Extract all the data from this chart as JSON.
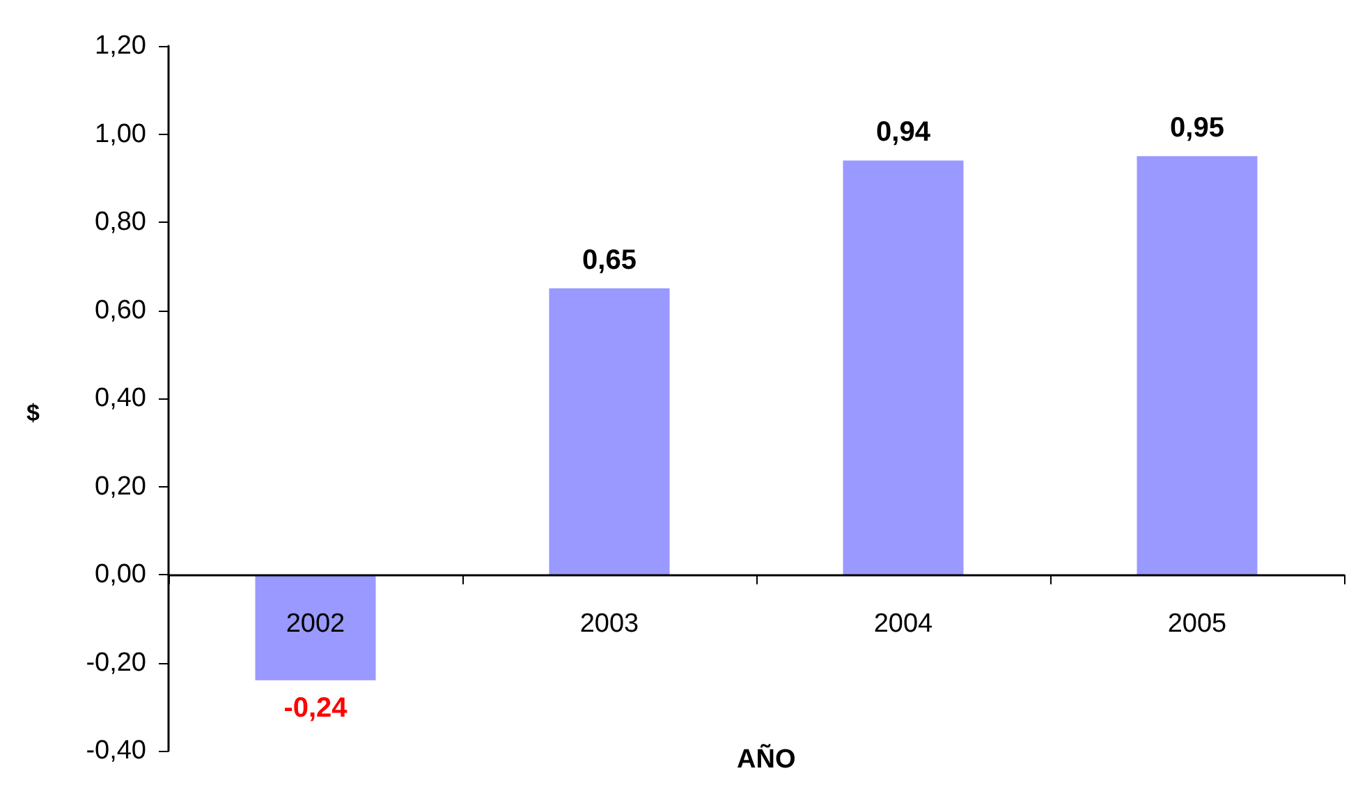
{
  "chart_data": {
    "type": "bar",
    "xlabel": "AÑO",
    "ylabel": "$",
    "categories": [
      "2002",
      "2003",
      "2004",
      "2005"
    ],
    "values": [
      -0.24,
      0.65,
      0.94,
      0.95
    ],
    "value_labels": [
      "-0,24",
      "0,65",
      "0,94",
      "0,95"
    ],
    "color": "#9999ff",
    "ylim": [
      -0.4,
      1.2
    ],
    "yticks": [
      {
        "value": -0.4,
        "label": "-0,40"
      },
      {
        "value": -0.2,
        "label": "-0,20"
      },
      {
        "value": 0,
        "label": "0,00"
      },
      {
        "value": 0.2,
        "label": "0,20"
      },
      {
        "value": 0.4,
        "label": "0,40"
      },
      {
        "value": 0.6,
        "label": "0,60"
      },
      {
        "value": 0.8,
        "label": "0,80"
      },
      {
        "value": 1.0,
        "label": "1,00"
      },
      {
        "value": 1.2,
        "label": "1,20"
      }
    ]
  }
}
